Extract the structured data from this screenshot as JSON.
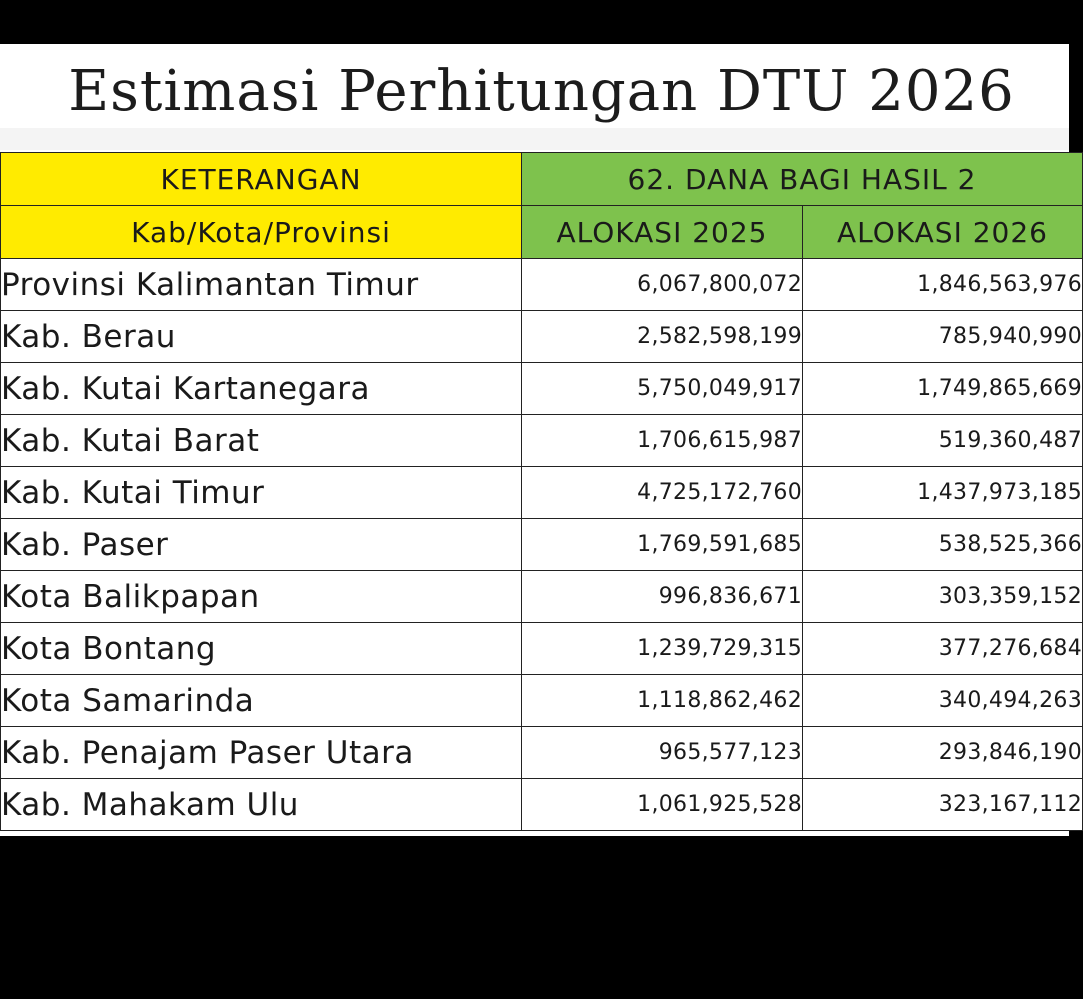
{
  "title": "Estimasi Perhitungan DTU 2026",
  "colors": {
    "header_left": "#ffeb00",
    "header_right": "#7ec24d",
    "background": "#000000",
    "sheet": "#ffffff"
  },
  "table": {
    "header_row1": {
      "left": "KETERANGAN",
      "right": "62. DANA BAGI HASIL 2"
    },
    "header_row2": {
      "col1": "Kab/Kota/Provinsi",
      "col2": "ALOKASI 2025",
      "col3": "ALOKASI 2026"
    },
    "rows": [
      {
        "name": "Provinsi Kalimantan Timur",
        "alokasi_2025": "6,067,800,072",
        "alokasi_2026": "1,846,563,976"
      },
      {
        "name": "Kab. Berau",
        "alokasi_2025": "2,582,598,199",
        "alokasi_2026": "785,940,990"
      },
      {
        "name": "Kab. Kutai Kartanegara",
        "alokasi_2025": "5,750,049,917",
        "alokasi_2026": "1,749,865,669"
      },
      {
        "name": "Kab. Kutai Barat",
        "alokasi_2025": "1,706,615,987",
        "alokasi_2026": "519,360,487"
      },
      {
        "name": "Kab. Kutai Timur",
        "alokasi_2025": "4,725,172,760",
        "alokasi_2026": "1,437,973,185"
      },
      {
        "name": "Kab. Paser",
        "alokasi_2025": "1,769,591,685",
        "alokasi_2026": "538,525,366"
      },
      {
        "name": "Kota Balikpapan",
        "alokasi_2025": "996,836,671",
        "alokasi_2026": "303,359,152"
      },
      {
        "name": "Kota Bontang",
        "alokasi_2025": "1,239,729,315",
        "alokasi_2026": "377,276,684"
      },
      {
        "name": "Kota Samarinda",
        "alokasi_2025": "1,118,862,462",
        "alokasi_2026": "340,494,263"
      },
      {
        "name": "Kab. Penajam Paser Utara",
        "alokasi_2025": "965,577,123",
        "alokasi_2026": "293,846,190"
      },
      {
        "name": "Kab. Mahakam Ulu",
        "alokasi_2025": "1,061,925,528",
        "alokasi_2026": "323,167,112"
      }
    ]
  }
}
